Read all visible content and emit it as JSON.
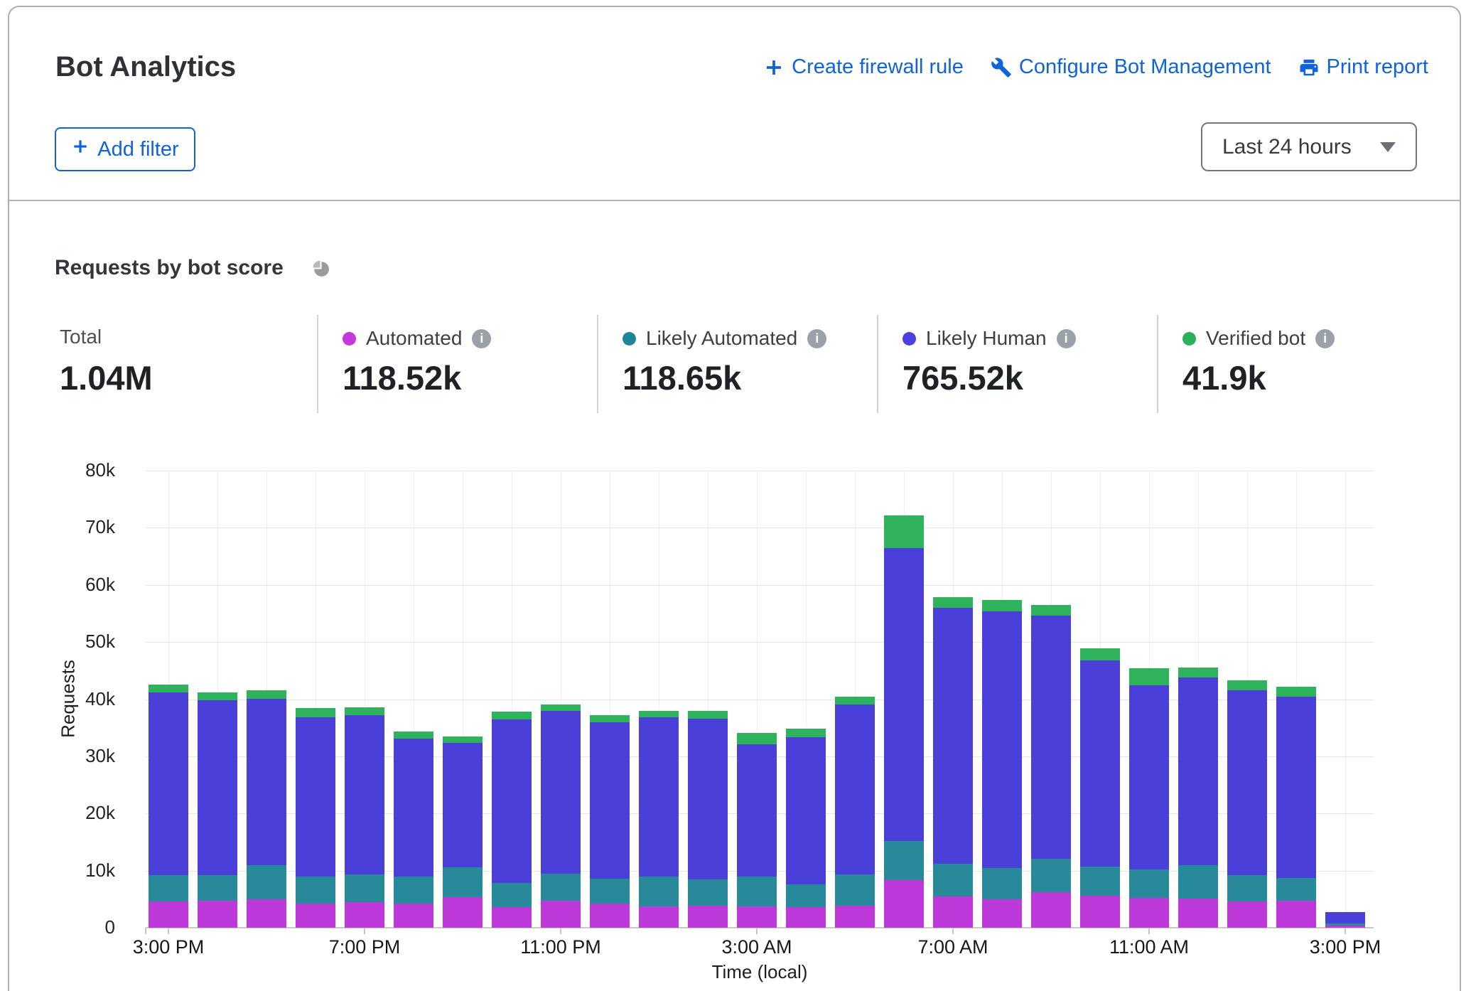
{
  "header": {
    "title": "Bot Analytics",
    "actions": [
      {
        "label": "Create firewall rule",
        "icon": "plus-icon"
      },
      {
        "label": "Configure Bot Management",
        "icon": "wrench-icon"
      },
      {
        "label": "Print report",
        "icon": "printer-icon"
      }
    ],
    "add_filter_label": "Add filter",
    "time_range_selected": "Last 24 hours"
  },
  "section": {
    "title": "Requests by bot score",
    "stats": {
      "total": {
        "label": "Total",
        "value": "1.04M"
      },
      "series": [
        {
          "label": "Automated",
          "value": "118.52k",
          "color": "#c637dc"
        },
        {
          "label": "Likely Automated",
          "value": "118.65k",
          "color": "#218599"
        },
        {
          "label": "Likely Human",
          "value": "765.52k",
          "color": "#4c41dd"
        },
        {
          "label": "Verified bot",
          "value": "41.9k",
          "color": "#2bb05e"
        }
      ]
    }
  },
  "chart_data": {
    "type": "bar",
    "stacked": true,
    "title": "Requests by bot score",
    "xlabel": "Time (local)",
    "ylabel": "Requests",
    "ylim": [
      0,
      80000
    ],
    "grid": true,
    "ytick_labels": [
      "0",
      "10k",
      "20k",
      "30k",
      "40k",
      "50k",
      "60k",
      "70k",
      "80k"
    ],
    "categories": [
      "3:00 PM",
      "4:00 PM",
      "5:00 PM",
      "6:00 PM",
      "7:00 PM",
      "8:00 PM",
      "9:00 PM",
      "10:00 PM",
      "11:00 PM",
      "12:00 AM",
      "1:00 AM",
      "2:00 AM",
      "3:00 AM",
      "4:00 AM",
      "5:00 AM",
      "6:00 AM",
      "7:00 AM",
      "8:00 AM",
      "9:00 AM",
      "10:00 AM",
      "11:00 AM",
      "12:00 PM",
      "1:00 PM",
      "2:00 PM",
      "3:00 PM"
    ],
    "xtick_indices": [
      0,
      4,
      8,
      12,
      16,
      20,
      24
    ],
    "xtick_labels": [
      "3:00 PM",
      "7:00 PM",
      "11:00 PM",
      "3:00 AM",
      "7:00 AM",
      "11:00 AM",
      "3:00 PM"
    ],
    "series": [
      {
        "name": "Automated",
        "color": "#bd39d9",
        "values": [
          4600,
          4700,
          5000,
          4200,
          4500,
          4200,
          5400,
          3600,
          4700,
          4200,
          3700,
          3900,
          3800,
          3600,
          3900,
          8400,
          5500,
          5000,
          6200,
          5600,
          5200,
          5100,
          4600,
          4700,
          400
        ]
      },
      {
        "name": "Likely Automated",
        "color": "#28899b",
        "values": [
          4600,
          4500,
          5900,
          4700,
          4800,
          4800,
          5200,
          4200,
          4800,
          4400,
          5300,
          4600,
          5200,
          4000,
          5500,
          6800,
          5700,
          5400,
          5900,
          5100,
          5000,
          5900,
          4600,
          4000,
          400
        ]
      },
      {
        "name": "Likely Human",
        "color": "#4a3fd9",
        "values": [
          32000,
          30600,
          29200,
          27900,
          27900,
          24100,
          21800,
          28700,
          28400,
          27400,
          27800,
          28100,
          23100,
          25700,
          29700,
          51300,
          44800,
          45000,
          42500,
          36100,
          32200,
          32800,
          32400,
          31700,
          1900
        ]
      },
      {
        "name": "Verified bot",
        "color": "#2eb25c",
        "values": [
          1300,
          1400,
          1500,
          1600,
          1400,
          1300,
          1100,
          1300,
          1200,
          1200,
          1200,
          1300,
          2000,
          1500,
          1400,
          5700,
          1800,
          1900,
          1900,
          2100,
          3000,
          1800,
          1700,
          1800,
          100
        ]
      }
    ]
  }
}
